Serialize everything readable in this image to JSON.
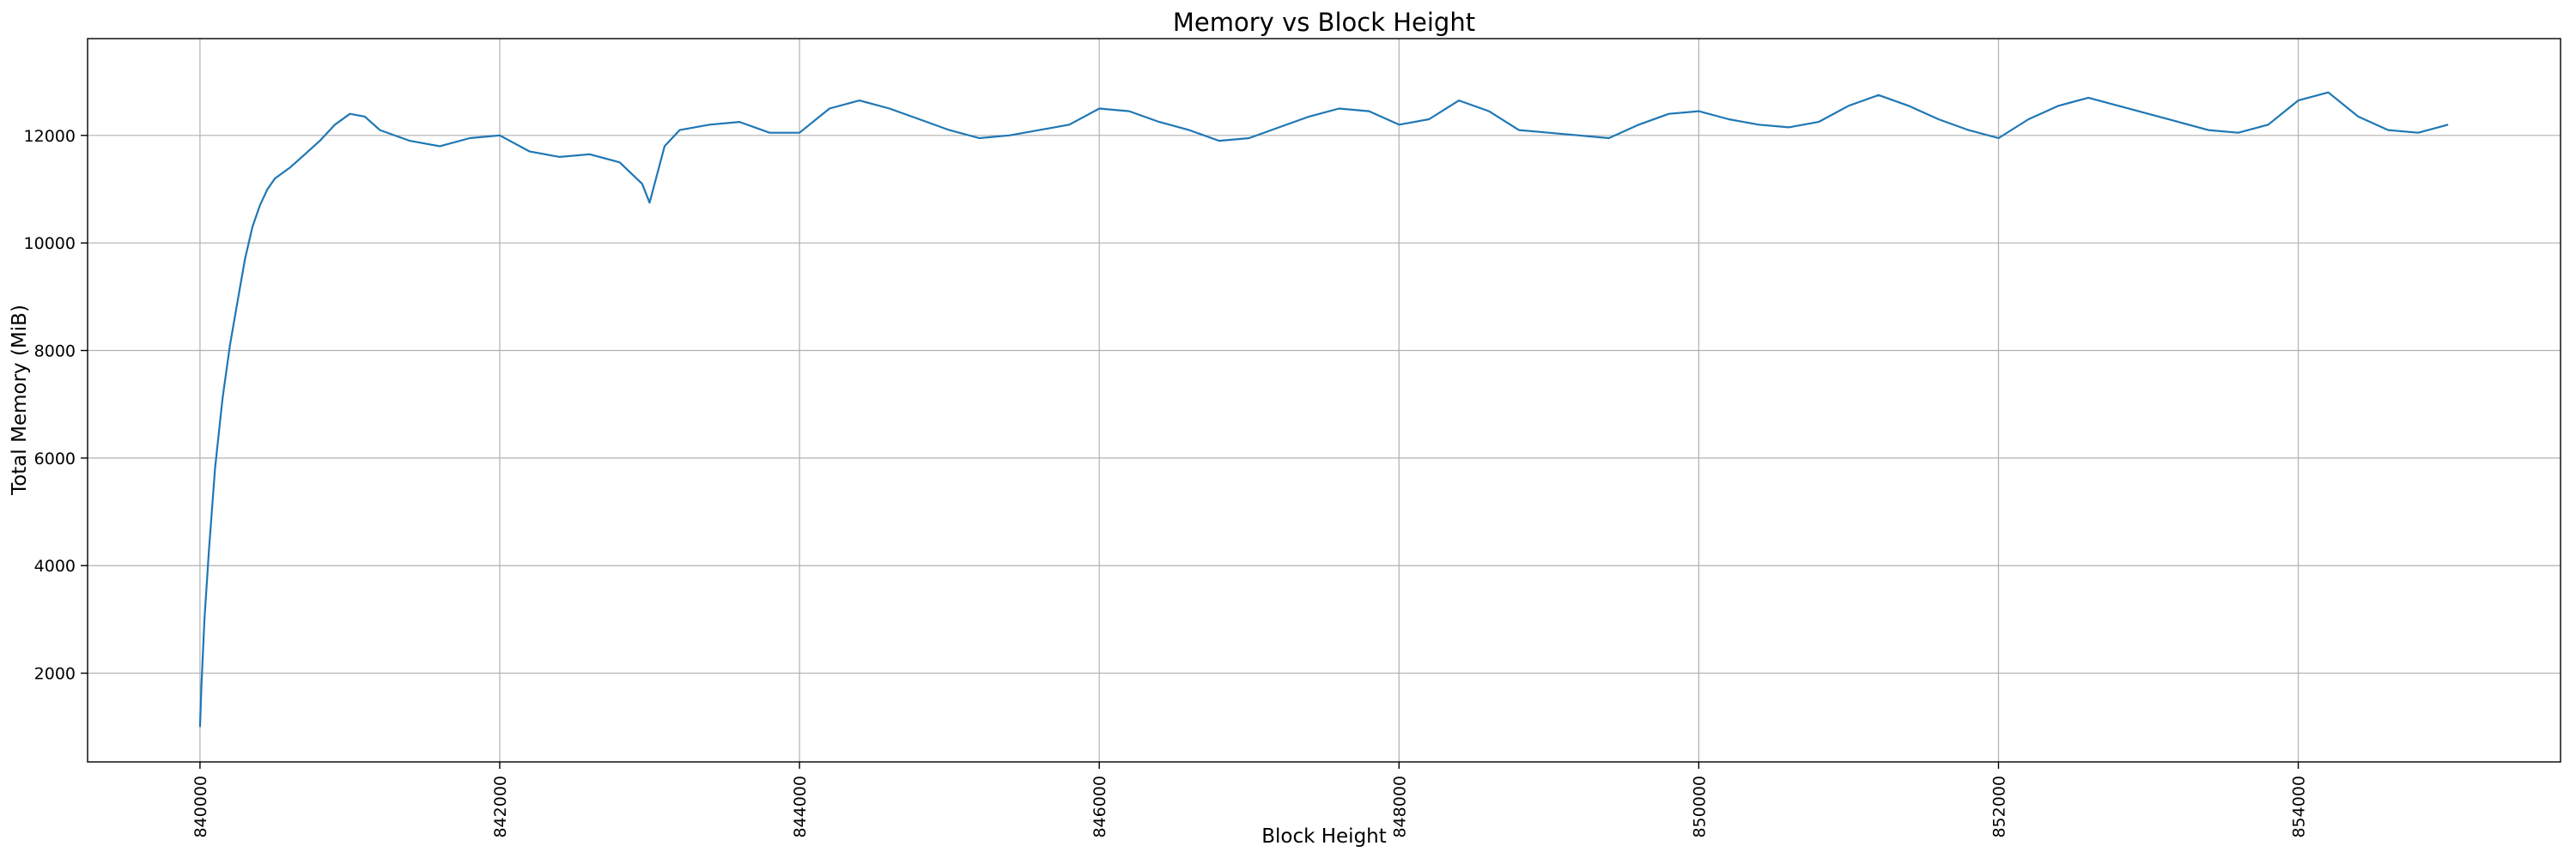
{
  "chart_data": {
    "type": "line",
    "title": "Memory vs Block Height",
    "xlabel": "Block Height",
    "ylabel": "Total Memory (MiB)",
    "xlim": [
      839250,
      855750
    ],
    "ylim": [
      350,
      13800
    ],
    "xticks": [
      840000,
      842000,
      844000,
      846000,
      848000,
      850000,
      852000,
      854000
    ],
    "yticks": [
      2000,
      4000,
      6000,
      8000,
      10000,
      12000
    ],
    "grid": true,
    "line_color": "#1f77b4",
    "series": [
      {
        "x": [
          840000,
          840010,
          840030,
          840060,
          840100,
          840150,
          840200,
          840250,
          840300,
          840350,
          840400,
          840450,
          840500,
          840600,
          840700,
          840800,
          840900,
          841000,
          841100,
          841200,
          841400,
          841600,
          841800,
          842000,
          842200,
          842400,
          842600,
          842800,
          842950,
          843000,
          843100,
          843200,
          843400,
          843600,
          843800,
          844000,
          844200,
          844400,
          844600,
          844800,
          845000,
          845200,
          845400,
          845600,
          845800,
          846000,
          846200,
          846400,
          846600,
          846800,
          847000,
          847200,
          847400,
          847600,
          847800,
          848000,
          848200,
          848400,
          848600,
          848800,
          849000,
          849200,
          849400,
          849600,
          849800,
          850000,
          850200,
          850400,
          850600,
          850800,
          851000,
          851200,
          851400,
          851600,
          851800,
          852000,
          852200,
          852400,
          852600,
          852800,
          853000,
          853200,
          853400,
          853600,
          853800,
          854000,
          854200,
          854400,
          854600,
          854800,
          855000
        ],
        "y": [
          1000,
          1800,
          3000,
          4300,
          5800,
          7100,
          8100,
          8900,
          9700,
          10300,
          10700,
          11000,
          11200,
          11400,
          11650,
          11900,
          12200,
          12400,
          12350,
          12100,
          11900,
          11800,
          11950,
          12000,
          11700,
          11600,
          11650,
          11500,
          11100,
          10750,
          11800,
          12100,
          12200,
          12250,
          12050,
          12050,
          12500,
          12650,
          12500,
          12300,
          12100,
          11950,
          12000,
          12100,
          12200,
          12500,
          12450,
          12250,
          12100,
          11900,
          11950,
          12150,
          12350,
          12500,
          12450,
          12200,
          12300,
          12650,
          12450,
          12100,
          12050,
          12000,
          11950,
          12200,
          12400,
          12450,
          12300,
          12200,
          12150,
          12250,
          12550,
          12750,
          12550,
          12300,
          12100,
          11950,
          12300,
          12550,
          12700,
          12550,
          12400,
          12250,
          12100,
          12050,
          12200,
          12650,
          12800,
          12350,
          12100,
          12050,
          12200
        ]
      }
    ]
  }
}
